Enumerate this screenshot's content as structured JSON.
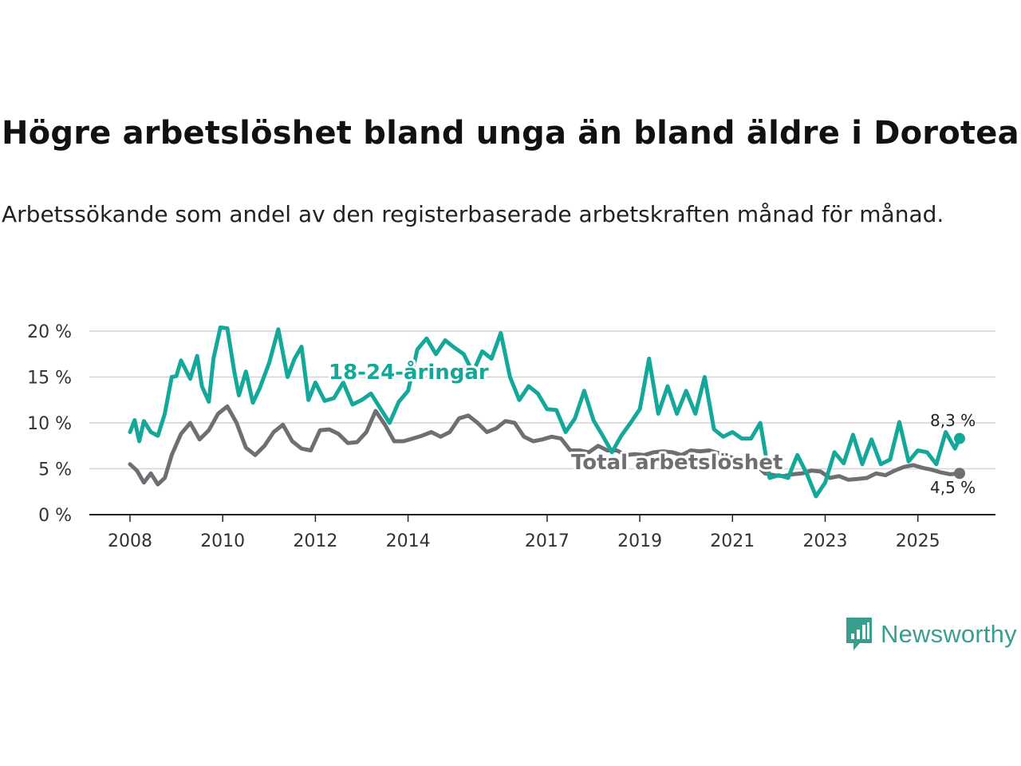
{
  "title": "Högre arbetslöshet bland unga än bland äldre i Dorotea",
  "subtitle": "Arbetssökande som andel av den registerbaserade arbetskraften månad för månad.",
  "brand": {
    "name": "Newsworthy",
    "icon": "newsworthy-logo-icon",
    "color": "#3a9e8f"
  },
  "chart_data": {
    "type": "line",
    "title": "Högre arbetslöshet bland unga än bland äldre i Dorotea",
    "ylim": [
      0,
      20
    ],
    "xlim": [
      2008,
      2026.8
    ],
    "y_ticks": [
      0,
      5,
      10,
      15,
      20
    ],
    "y_tick_labels": [
      "0 %",
      "5 %",
      "10 %",
      "15 %",
      "20 %"
    ],
    "x_ticks": [
      2008,
      2010,
      2012,
      2014,
      2017,
      2019,
      2021,
      2023,
      2025
    ],
    "x_tick_labels": [
      "2008",
      "2010",
      "2012",
      "2014",
      "2017",
      "2019",
      "2021",
      "2023",
      "2025"
    ],
    "grid": true,
    "series": [
      {
        "name": "18-24-åringar",
        "color": "#13a899",
        "end_label": "8,3 %",
        "x": [
          2008.0,
          2008.1,
          2008.2,
          2008.3,
          2008.45,
          2008.6,
          2008.75,
          2008.9,
          2009.0,
          2009.1,
          2009.3,
          2009.45,
          2009.55,
          2009.7,
          2009.8,
          2009.95,
          2010.1,
          2010.25,
          2010.35,
          2010.5,
          2010.65,
          2010.8,
          2011.0,
          2011.2,
          2011.4,
          2011.55,
          2011.7,
          2011.85,
          2012.0,
          2012.2,
          2012.4,
          2012.6,
          2012.8,
          2013.0,
          2013.2,
          2013.4,
          2013.6,
          2013.8,
          2014.0,
          2014.2,
          2014.4,
          2014.6,
          2014.8,
          2015.0,
          2015.2,
          2015.4,
          2015.6,
          2015.8,
          2016.0,
          2016.2,
          2016.4,
          2016.6,
          2016.8,
          2017.0,
          2017.2,
          2017.4,
          2017.6,
          2017.8,
          2018.0,
          2018.2,
          2018.4,
          2018.6,
          2018.8,
          2019.0,
          2019.2,
          2019.4,
          2019.6,
          2019.8,
          2020.0,
          2020.2,
          2020.4,
          2020.6,
          2020.8,
          2021.0,
          2021.2,
          2021.4,
          2021.6,
          2021.8,
          2022.0,
          2022.2,
          2022.4,
          2022.6,
          2022.8,
          2023.0,
          2023.2,
          2023.4,
          2023.6,
          2023.8,
          2024.0,
          2024.2,
          2024.4,
          2024.6,
          2024.8,
          2025.0,
          2025.2,
          2025.4,
          2025.6,
          2025.8,
          2025.9
        ],
        "values": [
          9.0,
          10.3,
          8.0,
          10.2,
          9.0,
          8.6,
          11.0,
          15.0,
          15.1,
          16.8,
          14.8,
          17.3,
          14.0,
          12.3,
          17.0,
          20.4,
          20.3,
          15.6,
          13.0,
          15.6,
          12.2,
          13.8,
          16.5,
          20.2,
          15.0,
          17.0,
          18.3,
          12.5,
          14.4,
          12.4,
          12.7,
          14.4,
          12.0,
          12.5,
          13.2,
          11.6,
          10.0,
          12.3,
          13.5,
          18.0,
          19.2,
          17.5,
          19.0,
          18.2,
          17.5,
          15.5,
          17.8,
          17.0,
          19.8,
          15.0,
          12.5,
          14.0,
          13.2,
          11.5,
          11.4,
          9.0,
          10.5,
          13.5,
          10.3,
          8.6,
          6.8,
          8.6,
          10.0,
          11.5,
          17.0,
          11.0,
          14.0,
          11.0,
          13.5,
          11.0,
          15.0,
          9.3,
          8.5,
          9.0,
          8.3,
          8.3,
          10.0,
          4.0,
          4.3,
          4.0,
          6.5,
          4.5,
          2.0,
          3.5,
          6.8,
          5.6,
          8.7,
          5.5,
          8.2,
          5.5,
          6.0,
          10.1,
          5.8,
          7.0,
          6.8,
          5.5,
          9.0,
          7.2,
          8.3
        ]
      },
      {
        "name": "Total arbetslöshet",
        "color": "#6e6e73",
        "end_label": "4,5 %",
        "x": [
          2008.0,
          2008.15,
          2008.3,
          2008.45,
          2008.6,
          2008.75,
          2008.9,
          2009.1,
          2009.3,
          2009.5,
          2009.7,
          2009.9,
          2010.1,
          2010.3,
          2010.5,
          2010.7,
          2010.9,
          2011.1,
          2011.3,
          2011.5,
          2011.7,
          2011.9,
          2012.1,
          2012.3,
          2012.5,
          2012.7,
          2012.9,
          2013.1,
          2013.3,
          2013.5,
          2013.7,
          2013.9,
          2014.1,
          2014.3,
          2014.5,
          2014.7,
          2014.9,
          2015.1,
          2015.3,
          2015.5,
          2015.7,
          2015.9,
          2016.1,
          2016.3,
          2016.5,
          2016.7,
          2016.9,
          2017.1,
          2017.3,
          2017.5,
          2017.7,
          2017.9,
          2018.1,
          2018.3,
          2018.5,
          2018.7,
          2018.9,
          2019.1,
          2019.3,
          2019.5,
          2019.7,
          2019.9,
          2020.1,
          2020.3,
          2020.5,
          2020.7,
          2020.9,
          2021.1,
          2021.3,
          2021.5,
          2021.7,
          2021.9,
          2022.1,
          2022.3,
          2022.5,
          2022.7,
          2022.9,
          2023.1,
          2023.3,
          2023.5,
          2023.7,
          2023.9,
          2024.1,
          2024.3,
          2024.5,
          2024.7,
          2024.9,
          2025.1,
          2025.3,
          2025.5,
          2025.7,
          2025.9
        ],
        "values": [
          5.5,
          4.8,
          3.5,
          4.5,
          3.3,
          4.0,
          6.5,
          8.8,
          10.0,
          8.2,
          9.2,
          11.0,
          11.8,
          10.0,
          7.3,
          6.5,
          7.5,
          9.0,
          9.8,
          8.0,
          7.2,
          7.0,
          9.2,
          9.3,
          8.8,
          7.8,
          7.9,
          9.0,
          11.3,
          9.8,
          8.0,
          8.0,
          8.3,
          8.6,
          9.0,
          8.5,
          9.0,
          10.5,
          10.8,
          10.0,
          9.0,
          9.4,
          10.2,
          10.0,
          8.5,
          8.0,
          8.2,
          8.5,
          8.3,
          7.0,
          7.0,
          6.8,
          7.5,
          7.0,
          7.0,
          6.5,
          6.6,
          6.5,
          6.8,
          6.9,
          6.8,
          6.5,
          7.0,
          6.9,
          7.0,
          6.7,
          6.4,
          6.0,
          5.8,
          5.5,
          4.5,
          4.3,
          4.2,
          4.4,
          4.5,
          4.8,
          4.7,
          4.0,
          4.2,
          3.8,
          3.9,
          4.0,
          4.5,
          4.3,
          4.8,
          5.2,
          5.4,
          5.1,
          4.9,
          4.6,
          4.4,
          4.5
        ]
      }
    ],
    "annotations": [
      {
        "text": "18-24-åringar",
        "series": "18-24-åringar"
      },
      {
        "text": "Total arbetslöshet",
        "series": "Total arbetslöshet"
      }
    ]
  }
}
